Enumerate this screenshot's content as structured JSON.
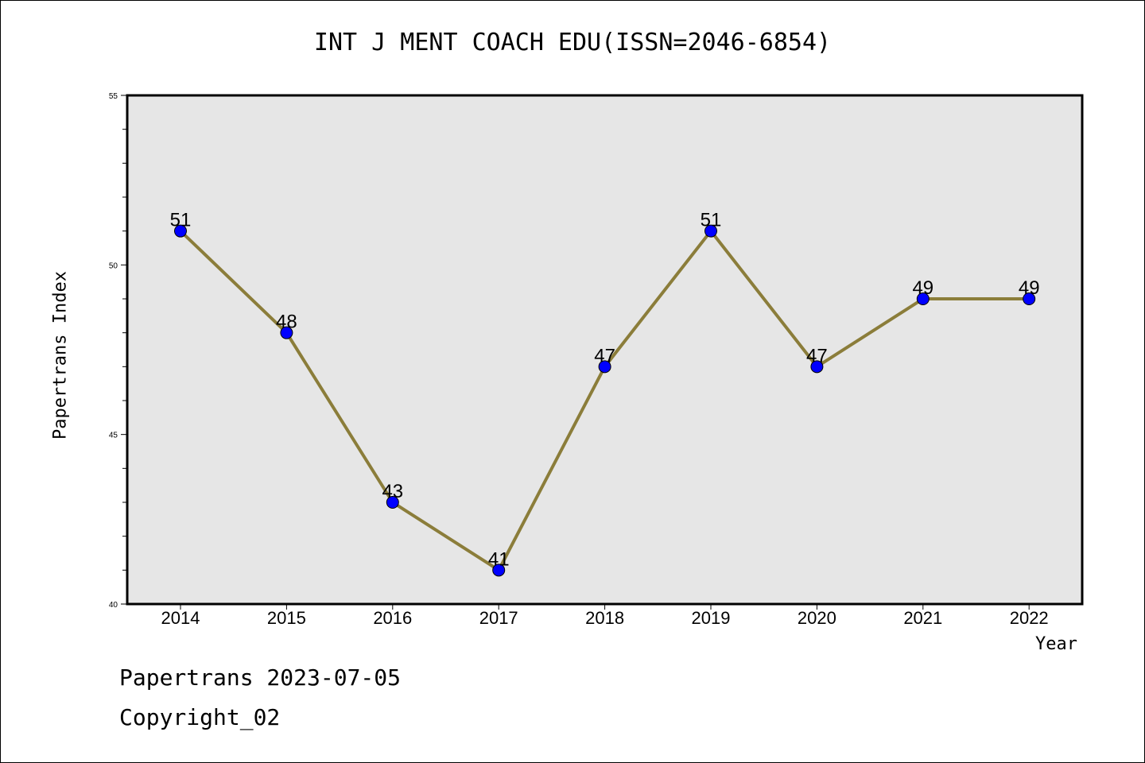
{
  "header": {
    "title": "INT J MENT COACH EDU(ISSN=2046-6854)"
  },
  "footer": {
    "line1": "Papertrans 2023-07-05",
    "line2": "Copyright_02"
  },
  "colors": {
    "line": "#8b7d3a",
    "marker": "#0000ff",
    "plot_background": "#e6e6e6",
    "axis": "#000000"
  },
  "chart_data": {
    "type": "line",
    "title": "INT J MENT COACH EDU(ISSN=2046-6854)",
    "xlabel": "Year",
    "ylabel": "Papertrans Index",
    "categories": [
      "2014",
      "2015",
      "2016",
      "2017",
      "2018",
      "2019",
      "2020",
      "2021",
      "2022"
    ],
    "values": [
      51,
      48,
      43,
      41,
      47,
      51,
      47,
      49,
      49
    ],
    "data_labels": [
      "51",
      "48",
      "43",
      "41",
      "47",
      "51",
      "47",
      "49",
      "49"
    ],
    "ylim": [
      40,
      55
    ],
    "yticks": [
      "40",
      "45",
      "50",
      "55"
    ],
    "y_minor_step": 1,
    "grid": false,
    "legend": "none"
  }
}
